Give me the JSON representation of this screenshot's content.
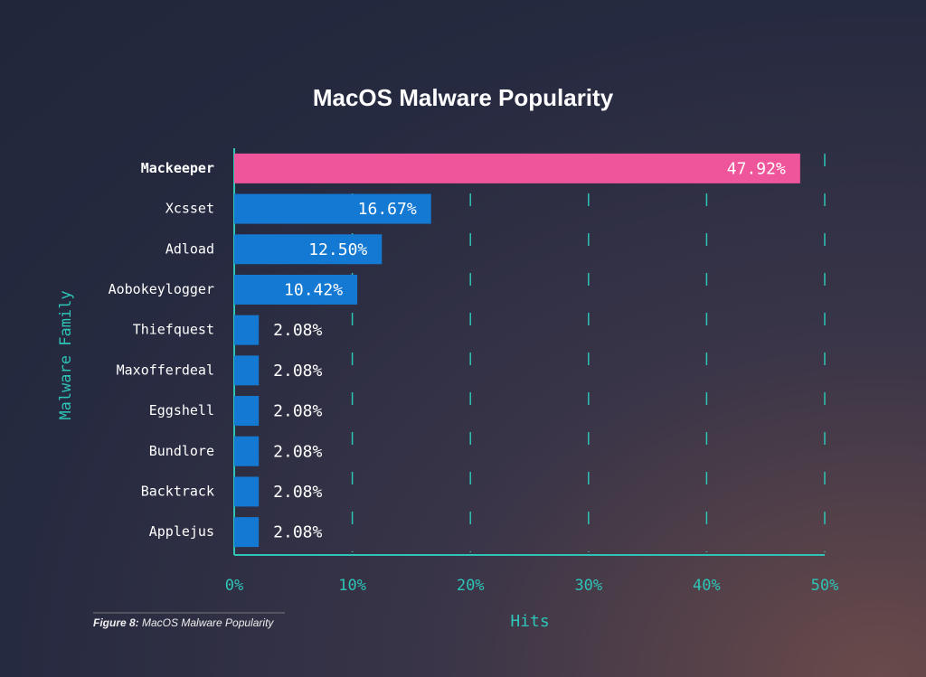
{
  "chart_data": {
    "type": "hbar",
    "title": "MacOS Malware Popularity",
    "categories": [
      "Mackeeper",
      "Xcsset",
      "Adload",
      "Aobokeylogger",
      "Thiefquest",
      "Maxofferdeal",
      "Eggshell",
      "Bundlore",
      "Backtrack",
      "Applejus"
    ],
    "values": [
      47.92,
      16.67,
      12.5,
      10.42,
      2.08,
      2.08,
      2.08,
      2.08,
      2.08,
      2.08
    ],
    "value_labels": [
      "47.92%",
      "16.67%",
      "12.50%",
      "10.42%",
      "2.08%",
      "2.08%",
      "2.08%",
      "2.08%",
      "2.08%",
      "2.08%"
    ],
    "colors": [
      "#ef559b",
      "#1479d2",
      "#1479d2",
      "#1479d2",
      "#1479d2",
      "#1479d2",
      "#1479d2",
      "#1479d2",
      "#1479d2",
      "#1479d2"
    ],
    "xlim": [
      0,
      50
    ],
    "xticks": [
      {
        "value": 0,
        "label": "0%"
      },
      {
        "value": 10,
        "label": "10%"
      },
      {
        "value": 20,
        "label": "20%"
      },
      {
        "value": 30,
        "label": "30%"
      },
      {
        "value": 40,
        "label": "40%"
      },
      {
        "value": 50,
        "label": "50%"
      }
    ],
    "xlabel": "Hits",
    "ylabel": "Malware Family",
    "grid": true,
    "caption_label": "Figure 8:",
    "caption": "MacOS Malware Popularity"
  }
}
